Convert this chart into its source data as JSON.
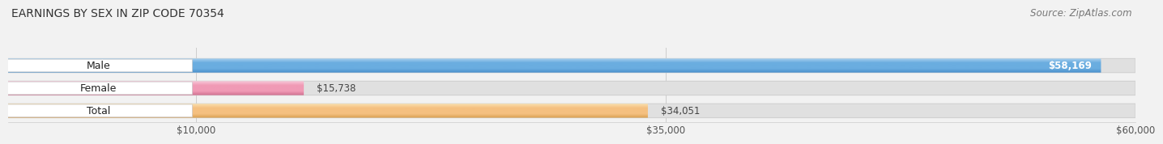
{
  "title": "EARNINGS BY SEX IN ZIP CODE 70354",
  "source": "Source: ZipAtlas.com",
  "categories": [
    "Male",
    "Female",
    "Total"
  ],
  "values": [
    58169,
    15738,
    34051
  ],
  "value_labels": [
    "$58,169",
    "$15,738",
    "$34,051"
  ],
  "bar_colors": [
    "#6aade0",
    "#f09ab5",
    "#f5c080"
  ],
  "bar_highlight_colors": [
    "#a8d0f0",
    "#f8c8d8",
    "#fae0b0"
  ],
  "bar_shadow_colors": [
    "#4a90cc",
    "#d07090",
    "#d8a050"
  ],
  "xmin": 0,
  "xmax": 60000,
  "xticks": [
    10000,
    35000,
    60000
  ],
  "xticklabels": [
    "$10,000",
    "$35,000",
    "$60,000"
  ],
  "bg_color": "#f2f2f2",
  "track_color": "#e0e0e0",
  "track_border_color": "#d0d0d0",
  "label_bg_color": "#ffffff",
  "title_fontsize": 10,
  "source_fontsize": 8.5,
  "label_fontsize": 9,
  "value_fontsize": 8.5
}
